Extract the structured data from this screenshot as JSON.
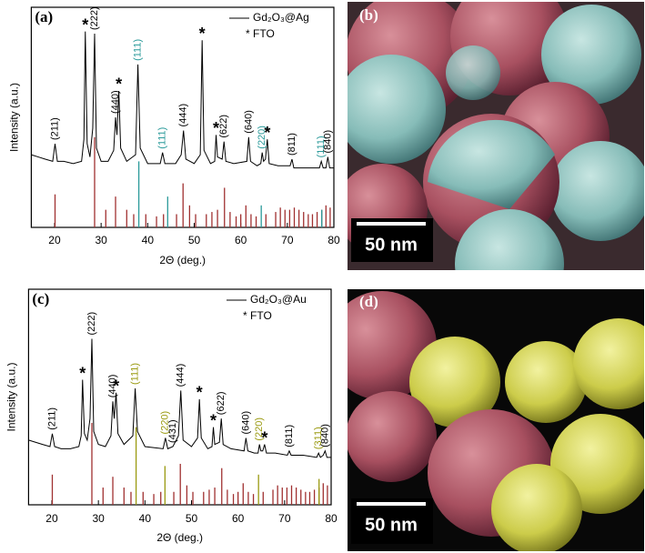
{
  "chart_data": [
    {
      "type": "line",
      "panel_label": "(a)",
      "xlabel": "2Θ (deg.)",
      "ylabel": "Intensity (a.u.)",
      "xlim": [
        15,
        80
      ],
      "xticks": [
        20,
        30,
        40,
        50,
        60,
        70,
        80
      ],
      "ylim": [
        0,
        100
      ],
      "series": [
        {
          "name": "Gd₂O₃@Ag",
          "color": "#000000",
          "x": [
            15,
            16.5,
            18,
            19.6,
            20.1,
            20.6,
            22,
            24,
            25.8,
            26.3,
            26.6,
            27,
            27.6,
            28.2,
            28.6,
            29,
            30,
            31.5,
            32.7,
            33.1,
            33.4,
            33.8,
            34.2,
            35.5,
            37.4,
            37.9,
            38.4,
            40,
            42.7,
            43.2,
            43.7,
            46,
            47.2,
            47.7,
            48.2,
            50,
            51.3,
            51.7,
            52.1,
            53.5,
            54.4,
            54.7,
            55,
            56,
            56.4,
            56.8,
            58.5,
            61.3,
            61.7,
            62.1,
            63.5,
            64.3,
            64.6,
            64.9,
            65.3,
            65.7,
            66.1,
            68,
            70.6,
            71,
            71.4,
            74,
            76.9,
            77.3,
            77.7,
            78.3,
            78.7,
            79.1,
            80
          ],
          "values": [
            33,
            32,
            31,
            30,
            38,
            30,
            30,
            29,
            30,
            40,
            89,
            38,
            32,
            45,
            88,
            36,
            30,
            30,
            35,
            50,
            42,
            62,
            36,
            30,
            33,
            74,
            36,
            29,
            29,
            34,
            29,
            29,
            33,
            44,
            31,
            29,
            33,
            85,
            35,
            29,
            30,
            42,
            32,
            31,
            39,
            30,
            29,
            30,
            41,
            30,
            28,
            29,
            34,
            30,
            31,
            40,
            29,
            28,
            28,
            31,
            27,
            27,
            27,
            30,
            27,
            27,
            32,
            27,
            27
          ]
        }
      ],
      "legend_note": "* FTO",
      "reference_patterns": [
        {
          "color": "#a03030",
          "x": [
            20.1,
            28.6,
            31.0,
            33.1,
            35.5,
            37.0,
            39.6,
            41.9,
            43.4,
            46.2,
            47.6,
            49.0,
            50.3,
            52.6,
            53.8,
            55.0,
            56.5,
            57.7,
            59.0,
            60.0,
            61.1,
            62.2,
            63.3,
            65.4,
            67.5,
            68.5,
            69.5,
            70.5,
            71.5,
            72.5,
            73.5,
            74.5,
            75.4,
            76.4,
            77.4,
            78.3,
            79.2
          ],
          "values": [
            15,
            41,
            8,
            14,
            8,
            6,
            6,
            5,
            6,
            6,
            20,
            10,
            6,
            6,
            7,
            8,
            18,
            7,
            5,
            6,
            10,
            6,
            5,
            6,
            7,
            9,
            8,
            8,
            9,
            8,
            7,
            6,
            6,
            7,
            8,
            10,
            9
          ]
        },
        {
          "color": "#2a9a9a",
          "x": [
            38.1,
            44.3,
            64.4,
            77.4
          ],
          "values": [
            30,
            14,
            10,
            8
          ]
        }
      ],
      "annotations": [
        {
          "text": "(211)",
          "x": 20.1,
          "color": "#000000"
        },
        {
          "text": "*",
          "x": 26.6,
          "color": "#000000"
        },
        {
          "text": "(222)",
          "x": 28.6,
          "color": "#000000"
        },
        {
          "text": "(440)",
          "x": 33.1,
          "color": "#000000"
        },
        {
          "text": "*",
          "x": 33.8,
          "color": "#000000"
        },
        {
          "text": "(111)",
          "x": 37.9,
          "color": "#2a9a9a"
        },
        {
          "text": "(111)",
          "x": 43.2,
          "color": "#2a9a9a"
        },
        {
          "text": "(444)",
          "x": 47.7,
          "color": "#000000"
        },
        {
          "text": "*",
          "x": 51.7,
          "color": "#000000"
        },
        {
          "text": "*",
          "x": 54.7,
          "color": "#000000"
        },
        {
          "text": "(622)",
          "x": 56.4,
          "color": "#000000"
        },
        {
          "text": "(640)",
          "x": 61.7,
          "color": "#000000"
        },
        {
          "text": "(220)",
          "x": 64.6,
          "color": "#2a9a9a"
        },
        {
          "text": "*",
          "x": 65.7,
          "color": "#000000"
        },
        {
          "text": "(811)",
          "x": 71,
          "color": "#000000"
        },
        {
          "text": "(111)",
          "x": 77.3,
          "color": "#2a9a9a"
        },
        {
          "text": "(840)",
          "x": 78.7,
          "color": "#000000"
        }
      ]
    },
    {
      "type": "line",
      "panel_label": "(c)",
      "xlabel": "2Θ (deg.)",
      "ylabel": "Intensity (a.u.)",
      "xlim": [
        15,
        80
      ],
      "xticks": [
        20,
        30,
        40,
        50,
        60,
        70,
        80
      ],
      "ylim": [
        0,
        100
      ],
      "series": [
        {
          "name": "Gd₂O₃@Au",
          "color": "#000000",
          "x": [
            15,
            16.5,
            18,
            19.6,
            20.1,
            20.6,
            22,
            24,
            25.8,
            26.3,
            26.6,
            27,
            27.6,
            28.2,
            28.6,
            29,
            30,
            31.5,
            32.7,
            33.1,
            33.4,
            33.8,
            34.2,
            35.5,
            37.4,
            37.9,
            38.4,
            40,
            43.9,
            44.4,
            44.9,
            46,
            47.2,
            47.7,
            48.2,
            50,
            51.3,
            51.7,
            52.1,
            53.5,
            54.4,
            54.7,
            55,
            56,
            56.4,
            56.8,
            58.5,
            61.3,
            61.7,
            62.1,
            63.5,
            64.3,
            64.6,
            64.9,
            65.3,
            65.7,
            66.1,
            68,
            70.6,
            71,
            71.4,
            74,
            76.9,
            77.3,
            77.7,
            78.3,
            78.7,
            79.1,
            80
          ],
          "values": [
            30,
            29,
            28,
            27,
            33,
            27,
            26,
            26,
            27,
            32,
            58,
            33,
            30,
            40,
            77,
            34,
            28,
            27,
            32,
            48,
            40,
            52,
            33,
            28,
            32,
            54,
            34,
            27,
            26,
            31,
            26,
            27,
            32,
            53,
            30,
            27,
            31,
            49,
            31,
            26,
            27,
            36,
            28,
            29,
            40,
            28,
            26,
            25,
            31,
            25,
            24,
            24,
            28,
            25,
            25,
            28,
            24,
            24,
            23,
            25,
            23,
            23,
            22,
            24,
            22,
            23,
            25,
            22,
            22
          ]
        }
      ],
      "legend_note": "* FTO",
      "reference_patterns": [
        {
          "color": "#a03030",
          "x": [
            20.1,
            28.6,
            31.0,
            33.1,
            35.5,
            37.0,
            39.6,
            41.9,
            43.4,
            46.2,
            47.6,
            49.0,
            50.3,
            52.6,
            53.8,
            55.0,
            56.5,
            57.7,
            59.0,
            60.0,
            61.1,
            62.2,
            63.3,
            65.4,
            67.5,
            68.5,
            69.5,
            70.5,
            71.5,
            72.5,
            73.5,
            74.5,
            75.4,
            76.4,
            77.4,
            78.3,
            79.2
          ],
          "values": [
            14,
            38,
            8,
            13,
            8,
            6,
            6,
            5,
            6,
            6,
            19,
            9,
            6,
            6,
            7,
            8,
            17,
            7,
            5,
            6,
            10,
            6,
            5,
            6,
            7,
            9,
            8,
            8,
            9,
            8,
            7,
            6,
            6,
            7,
            8,
            10,
            9
          ]
        },
        {
          "color": "#9a9a10",
          "x": [
            38.1,
            44.3,
            64.4,
            77.4
          ],
          "values": [
            36,
            18,
            14,
            12
          ]
        }
      ],
      "annotations": [
        {
          "text": "(211)",
          "x": 20.1,
          "color": "#000000"
        },
        {
          "text": "*",
          "x": 26.6,
          "color": "#000000"
        },
        {
          "text": "(222)",
          "x": 28.6,
          "color": "#000000"
        },
        {
          "text": "(440)",
          "x": 33.1,
          "color": "#000000"
        },
        {
          "text": "*",
          "x": 33.8,
          "color": "#000000"
        },
        {
          "text": "(111)",
          "x": 37.9,
          "color": "#9a9a10"
        },
        {
          "text": "(220)",
          "x": 44.4,
          "color": "#9a9a10"
        },
        {
          "text": "(431)",
          "x": 46,
          "color": "#000000"
        },
        {
          "text": "(444)",
          "x": 47.7,
          "color": "#000000"
        },
        {
          "text": "*",
          "x": 51.7,
          "color": "#000000"
        },
        {
          "text": "*",
          "x": 54.7,
          "color": "#000000"
        },
        {
          "text": "(622)",
          "x": 56.4,
          "color": "#000000"
        },
        {
          "text": "(640)",
          "x": 61.7,
          "color": "#000000"
        },
        {
          "text": "(220)",
          "x": 64.6,
          "color": "#9a9a10"
        },
        {
          "text": "*",
          "x": 65.7,
          "color": "#000000"
        },
        {
          "text": "(811)",
          "x": 71,
          "color": "#000000"
        },
        {
          "text": "(311)",
          "x": 77.3,
          "color": "#9a9a10"
        },
        {
          "text": "(840)",
          "x": 78.7,
          "color": "#000000"
        }
      ]
    }
  ],
  "images": [
    {
      "label": "(b)",
      "scale_bar": "50 nm"
    },
    {
      "label": "(d)",
      "scale_bar": "50 nm"
    }
  ]
}
